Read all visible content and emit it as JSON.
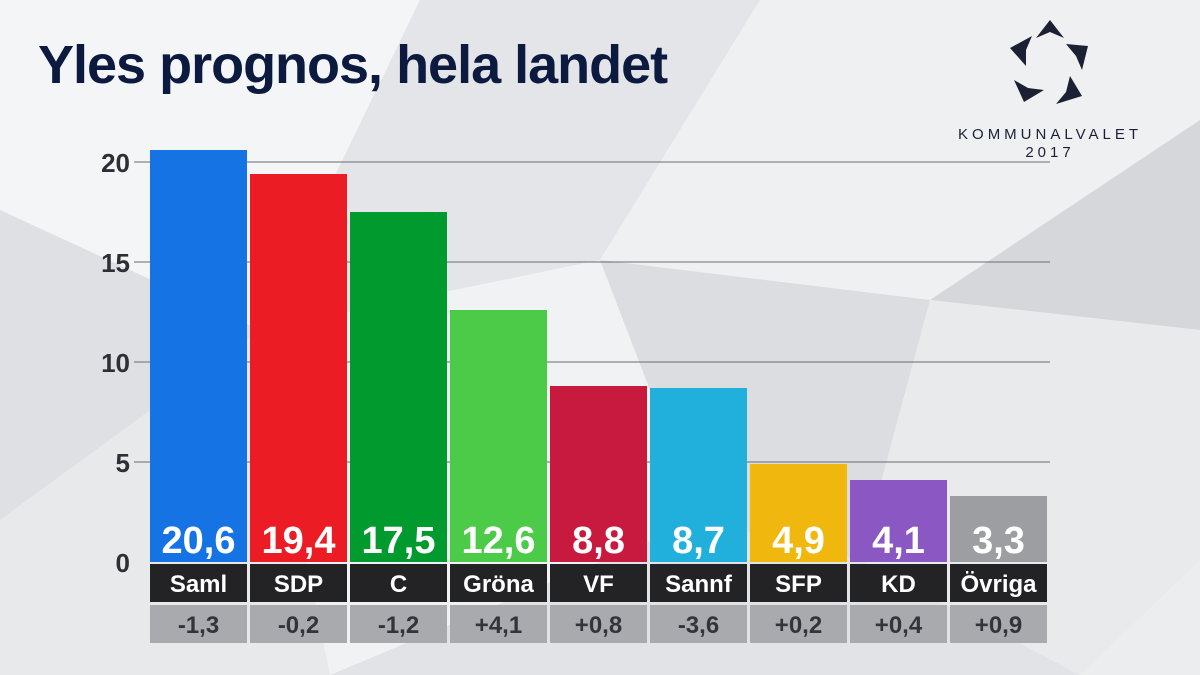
{
  "header": {
    "title": "Yles prognos, hela landet"
  },
  "logo": {
    "line1": "KOMMUNALVALET",
    "line2": "2017"
  },
  "colors": {
    "title": "#0c1a40",
    "label_band": "#232326",
    "change_band": "#a9aaad",
    "gridline": "#6b6b70"
  },
  "chart_data": {
    "type": "bar",
    "title": "Yles prognos, hela landet",
    "xlabel": "",
    "ylabel": "",
    "ylim": [
      0,
      20
    ],
    "yticks": [
      0,
      5,
      10,
      15,
      20
    ],
    "grid": true,
    "categories": [
      "Saml",
      "SDP",
      "C",
      "Gröna",
      "VF",
      "Sannf",
      "SFP",
      "KD",
      "Övriga"
    ],
    "values": [
      20.6,
      19.4,
      17.5,
      12.6,
      8.8,
      8.7,
      4.9,
      4.1,
      3.3
    ],
    "value_labels": [
      "20,6",
      "19,4",
      "17,5",
      "12,6",
      "8,8",
      "8,7",
      "4,9",
      "4,1",
      "3,3"
    ],
    "changes": [
      -1.3,
      -0.2,
      -1.2,
      4.1,
      0.8,
      -3.6,
      0.2,
      0.4,
      0.9
    ],
    "change_labels": [
      "-1,3",
      "-0,2",
      "-1,2",
      "+4,1",
      "+0,8",
      "-3,6",
      "+0,2",
      "+0,4",
      "+0,9"
    ],
    "bar_colors": [
      "#1573e4",
      "#ec1c24",
      "#009a2e",
      "#4ccb48",
      "#c8193e",
      "#21b0db",
      "#f0b80f",
      "#8a57c3",
      "#9d9ea1"
    ]
  }
}
